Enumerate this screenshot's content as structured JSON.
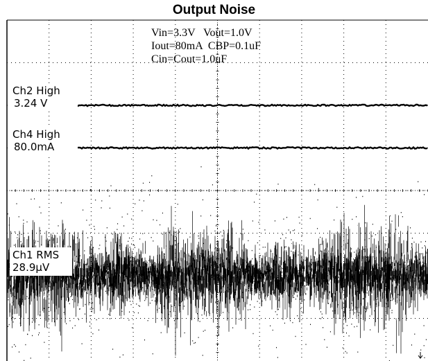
{
  "chart_data": {
    "type": "line",
    "title": "Output Noise",
    "conditions": [
      "Vin=3.3V   Vout=1.0V",
      "Iout=80mA  CBP=0.1uF",
      "Cin=Cout=1.0uF"
    ],
    "grid": true,
    "divisions": {
      "x": 10,
      "y": 8
    },
    "series": [
      {
        "name": "Ch2 High",
        "value_label": "3.24 V",
        "kind": "flat",
        "level_div": 6.0
      },
      {
        "name": "Ch4 High",
        "value_label": "80.0mA",
        "kind": "flat",
        "level_div": 5.0
      },
      {
        "name": "Ch1 RMS",
        "value_label": "28.9µV",
        "kind": "noise",
        "center_div": 2.0,
        "spread_div": 1.2
      }
    ],
    "colors": {
      "trace": "#000000",
      "grid": "#000000",
      "background": "#ffffff"
    }
  }
}
